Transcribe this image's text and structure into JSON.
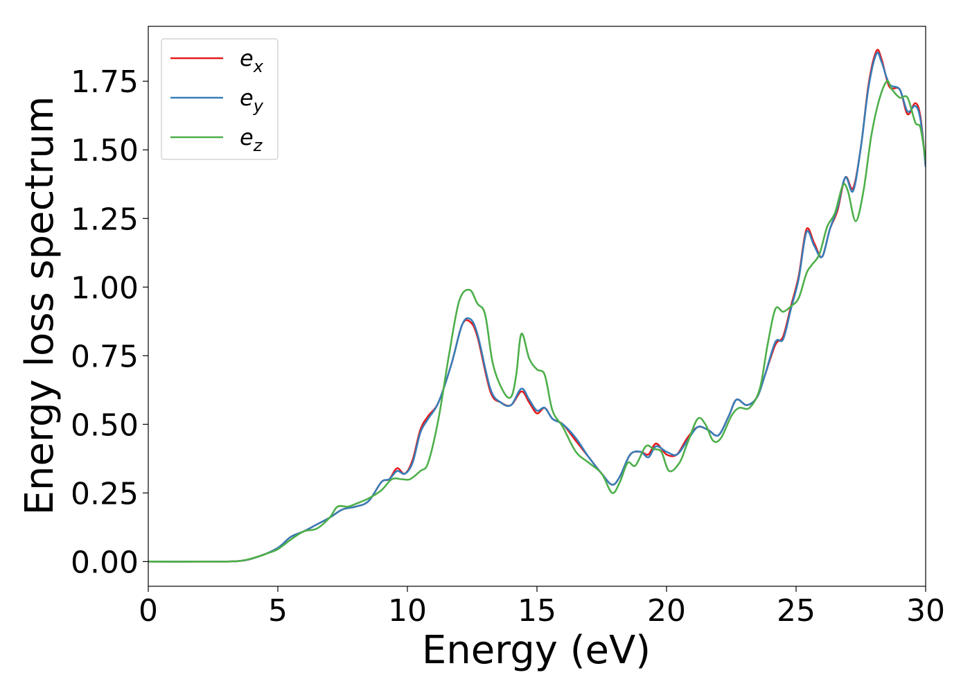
{
  "chart_data": {
    "type": "line",
    "title": "",
    "xlabel": "Energy (eV)",
    "ylabel": "Energy loss spectrum",
    "xlim": [
      0,
      30
    ],
    "ylim": [
      -0.09,
      1.95
    ],
    "xticks": [
      0,
      5,
      10,
      15,
      20,
      25,
      30
    ],
    "xtick_labels": [
      "0",
      "5",
      "10",
      "15",
      "20",
      "25",
      "30"
    ],
    "yticks": [
      0.0,
      0.25,
      0.5,
      0.75,
      1.0,
      1.25,
      1.5,
      1.75
    ],
    "ytick_labels": [
      "0.00",
      "0.25",
      "0.50",
      "0.75",
      "1.00",
      "1.25",
      "1.50",
      "1.75"
    ],
    "grid": false,
    "legend_position": "top-left",
    "series": [
      {
        "name": "e_x",
        "label_base": "e",
        "label_sub": "x",
        "color": "#e41a1c",
        "x": [
          0,
          2,
          3.5,
          4.3,
          5,
          5.5,
          6,
          6.5,
          7,
          7.5,
          8,
          8.5,
          9,
          9.3,
          9.6,
          9.9,
          10.2,
          10.5,
          10.8,
          11.2,
          11.7,
          12.1,
          12.4,
          12.7,
          13.2,
          13.6,
          14,
          14.4,
          14.7,
          15,
          15.3,
          15.6,
          16,
          16.5,
          17,
          17.5,
          17.9,
          18.2,
          18.6,
          19,
          19.3,
          19.6,
          20,
          20.4,
          20.8,
          21.2,
          21.6,
          22,
          22.4,
          22.7,
          23.1,
          23.5,
          23.8,
          24.2,
          24.5,
          24.8,
          25.1,
          25.4,
          25.7,
          26,
          26.3,
          26.6,
          26.9,
          27.2,
          27.5,
          27.8,
          28.1,
          28.3,
          28.6,
          29,
          29.3,
          29.6,
          29.8,
          30
        ],
        "values": [
          0,
          0,
          0.002,
          0.02,
          0.05,
          0.09,
          0.11,
          0.135,
          0.16,
          0.19,
          0.2,
          0.22,
          0.29,
          0.3,
          0.34,
          0.32,
          0.37,
          0.48,
          0.53,
          0.58,
          0.72,
          0.86,
          0.875,
          0.82,
          0.62,
          0.58,
          0.57,
          0.62,
          0.58,
          0.54,
          0.56,
          0.52,
          0.5,
          0.44,
          0.38,
          0.32,
          0.28,
          0.31,
          0.39,
          0.4,
          0.39,
          0.43,
          0.39,
          0.39,
          0.45,
          0.49,
          0.48,
          0.46,
          0.53,
          0.59,
          0.57,
          0.6,
          0.68,
          0.79,
          0.82,
          0.93,
          1.04,
          1.21,
          1.16,
          1.11,
          1.21,
          1.28,
          1.4,
          1.36,
          1.51,
          1.74,
          1.86,
          1.83,
          1.73,
          1.72,
          1.63,
          1.67,
          1.62,
          1.44
        ]
      },
      {
        "name": "e_y",
        "label_base": "e",
        "label_sub": "y",
        "color": "#377eb8",
        "x": [
          0,
          2,
          3.5,
          4.3,
          5,
          5.5,
          6,
          6.5,
          7,
          7.5,
          8,
          8.5,
          9,
          9.3,
          9.6,
          9.9,
          10.2,
          10.5,
          10.8,
          11.2,
          11.7,
          12.1,
          12.4,
          12.7,
          13.2,
          13.6,
          14,
          14.4,
          14.7,
          15,
          15.3,
          15.6,
          16,
          16.5,
          17,
          17.5,
          17.9,
          18.2,
          18.6,
          19,
          19.3,
          19.6,
          20,
          20.4,
          20.8,
          21.2,
          21.6,
          22,
          22.4,
          22.7,
          23.1,
          23.5,
          23.8,
          24.2,
          24.5,
          24.8,
          25.1,
          25.4,
          25.7,
          26,
          26.3,
          26.6,
          26.9,
          27.2,
          27.5,
          27.8,
          28.1,
          28.3,
          28.6,
          29,
          29.3,
          29.6,
          29.8,
          30
        ],
        "values": [
          0,
          0,
          0.002,
          0.02,
          0.05,
          0.09,
          0.11,
          0.135,
          0.16,
          0.19,
          0.2,
          0.22,
          0.29,
          0.3,
          0.33,
          0.32,
          0.36,
          0.47,
          0.52,
          0.58,
          0.72,
          0.86,
          0.885,
          0.83,
          0.63,
          0.58,
          0.57,
          0.63,
          0.59,
          0.55,
          0.56,
          0.52,
          0.5,
          0.45,
          0.38,
          0.32,
          0.28,
          0.31,
          0.39,
          0.4,
          0.38,
          0.42,
          0.4,
          0.39,
          0.44,
          0.49,
          0.48,
          0.46,
          0.53,
          0.59,
          0.57,
          0.6,
          0.68,
          0.8,
          0.81,
          0.92,
          1.03,
          1.2,
          1.15,
          1.11,
          1.21,
          1.29,
          1.4,
          1.35,
          1.51,
          1.73,
          1.85,
          1.82,
          1.74,
          1.72,
          1.64,
          1.66,
          1.61,
          1.44
        ]
      },
      {
        "name": "e_z",
        "label_base": "e",
        "label_sub": "z",
        "color": "#4daf4a",
        "x": [
          0,
          2,
          3.5,
          4.3,
          4.6,
          5,
          5.5,
          6,
          6.5,
          7,
          7.3,
          7.7,
          8,
          8.5,
          9,
          9.4,
          9.8,
          10.1,
          10.5,
          10.8,
          11.2,
          11.6,
          12,
          12.4,
          12.7,
          13,
          13.3,
          13.7,
          14,
          14.2,
          14.4,
          14.7,
          15,
          15.3,
          15.6,
          16,
          16.5,
          17,
          17.5,
          17.9,
          18.2,
          18.5,
          18.8,
          19.2,
          19.5,
          19.8,
          20.1,
          20.5,
          20.8,
          21.2,
          21.5,
          21.8,
          22.1,
          22.5,
          22.8,
          23.2,
          23.6,
          23.9,
          24.2,
          24.5,
          24.8,
          25.1,
          25.4,
          25.6,
          25.9,
          26.2,
          26.5,
          26.8,
          27,
          27.3,
          27.6,
          27.9,
          28.2,
          28.5,
          28.7,
          29,
          29.3,
          29.6,
          29.8,
          30
        ],
        "values": [
          0,
          0,
          0.002,
          0.02,
          0.03,
          0.045,
          0.08,
          0.11,
          0.12,
          0.16,
          0.2,
          0.2,
          0.21,
          0.23,
          0.26,
          0.3,
          0.3,
          0.3,
          0.33,
          0.36,
          0.52,
          0.75,
          0.95,
          0.99,
          0.94,
          0.9,
          0.72,
          0.62,
          0.6,
          0.68,
          0.83,
          0.74,
          0.7,
          0.68,
          0.55,
          0.49,
          0.4,
          0.36,
          0.32,
          0.25,
          0.29,
          0.36,
          0.35,
          0.42,
          0.41,
          0.4,
          0.33,
          0.36,
          0.43,
          0.52,
          0.5,
          0.44,
          0.45,
          0.53,
          0.56,
          0.56,
          0.63,
          0.79,
          0.92,
          0.91,
          0.93,
          0.96,
          1.05,
          1.08,
          1.12,
          1.22,
          1.27,
          1.37,
          1.35,
          1.24,
          1.35,
          1.55,
          1.68,
          1.75,
          1.72,
          1.69,
          1.69,
          1.6,
          1.58,
          1.46
        ]
      }
    ]
  }
}
